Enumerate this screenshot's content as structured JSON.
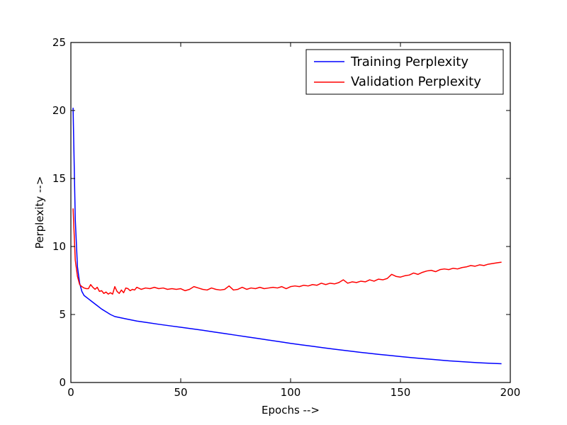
{
  "chart_data": {
    "type": "line",
    "title": "",
    "xlabel": "Epochs -->",
    "ylabel": "Perplexity -->",
    "xlim": [
      0,
      200
    ],
    "ylim": [
      0,
      25
    ],
    "xticks": [
      0,
      50,
      100,
      150,
      200
    ],
    "yticks": [
      0,
      5,
      10,
      15,
      20,
      25
    ],
    "grid": false,
    "legend_position": "top-right",
    "series": [
      {
        "name": "Training Perplexity",
        "color": "#0000ff",
        "points": [
          [
            1,
            20.2
          ],
          [
            2,
            12.0
          ],
          [
            3,
            8.5
          ],
          [
            4,
            7.3
          ],
          [
            5,
            6.7
          ],
          [
            6,
            6.4
          ],
          [
            8,
            6.15
          ],
          [
            10,
            5.9
          ],
          [
            12,
            5.65
          ],
          [
            14,
            5.4
          ],
          [
            16,
            5.2
          ],
          [
            18,
            5.0
          ],
          [
            20,
            4.85
          ],
          [
            25,
            4.68
          ],
          [
            30,
            4.52
          ],
          [
            35,
            4.4
          ],
          [
            40,
            4.28
          ],
          [
            45,
            4.17
          ],
          [
            50,
            4.06
          ],
          [
            55,
            3.95
          ],
          [
            60,
            3.84
          ],
          [
            65,
            3.72
          ],
          [
            70,
            3.6
          ],
          [
            75,
            3.48
          ],
          [
            80,
            3.36
          ],
          [
            85,
            3.24
          ],
          [
            90,
            3.12
          ],
          [
            95,
            3.0
          ],
          [
            100,
            2.88
          ],
          [
            105,
            2.77
          ],
          [
            110,
            2.66
          ],
          [
            115,
            2.55
          ],
          [
            120,
            2.45
          ],
          [
            125,
            2.35
          ],
          [
            130,
            2.25
          ],
          [
            135,
            2.16
          ],
          [
            140,
            2.07
          ],
          [
            145,
            1.99
          ],
          [
            150,
            1.91
          ],
          [
            155,
            1.83
          ],
          [
            160,
            1.76
          ],
          [
            165,
            1.69
          ],
          [
            170,
            1.62
          ],
          [
            175,
            1.56
          ],
          [
            180,
            1.51
          ],
          [
            185,
            1.46
          ],
          [
            190,
            1.42
          ],
          [
            196,
            1.38
          ]
        ]
      },
      {
        "name": "Validation Perplexity",
        "color": "#ff0000",
        "points": [
          [
            1,
            12.8
          ],
          [
            2,
            9.0
          ],
          [
            3,
            7.8
          ],
          [
            4,
            7.2
          ],
          [
            5,
            7.05
          ],
          [
            6,
            6.95
          ],
          [
            7,
            6.9
          ],
          [
            8,
            6.9
          ],
          [
            9,
            7.2
          ],
          [
            10,
            7.0
          ],
          [
            11,
            6.85
          ],
          [
            12,
            7.0
          ],
          [
            13,
            6.7
          ],
          [
            14,
            6.75
          ],
          [
            15,
            6.55
          ],
          [
            16,
            6.65
          ],
          [
            17,
            6.5
          ],
          [
            18,
            6.6
          ],
          [
            19,
            6.5
          ],
          [
            20,
            7.05
          ],
          [
            21,
            6.7
          ],
          [
            22,
            6.55
          ],
          [
            23,
            6.8
          ],
          [
            24,
            6.6
          ],
          [
            25,
            6.95
          ],
          [
            26,
            6.9
          ],
          [
            27,
            6.75
          ],
          [
            28,
            6.85
          ],
          [
            29,
            6.8
          ],
          [
            30,
            7.0
          ],
          [
            32,
            6.85
          ],
          [
            34,
            6.95
          ],
          [
            36,
            6.9
          ],
          [
            38,
            7.0
          ],
          [
            40,
            6.9
          ],
          [
            42,
            6.95
          ],
          [
            44,
            6.85
          ],
          [
            46,
            6.9
          ],
          [
            48,
            6.85
          ],
          [
            50,
            6.9
          ],
          [
            52,
            6.75
          ],
          [
            54,
            6.85
          ],
          [
            56,
            7.05
          ],
          [
            58,
            6.95
          ],
          [
            60,
            6.85
          ],
          [
            62,
            6.8
          ],
          [
            64,
            6.95
          ],
          [
            66,
            6.85
          ],
          [
            68,
            6.8
          ],
          [
            70,
            6.85
          ],
          [
            72,
            7.1
          ],
          [
            74,
            6.8
          ],
          [
            76,
            6.85
          ],
          [
            78,
            7.0
          ],
          [
            80,
            6.85
          ],
          [
            82,
            6.95
          ],
          [
            84,
            6.9
          ],
          [
            86,
            7.0
          ],
          [
            88,
            6.9
          ],
          [
            90,
            6.95
          ],
          [
            92,
            7.0
          ],
          [
            94,
            6.95
          ],
          [
            96,
            7.05
          ],
          [
            98,
            6.9
          ],
          [
            100,
            7.05
          ],
          [
            102,
            7.1
          ],
          [
            104,
            7.05
          ],
          [
            106,
            7.15
          ],
          [
            108,
            7.1
          ],
          [
            110,
            7.2
          ],
          [
            112,
            7.15
          ],
          [
            114,
            7.3
          ],
          [
            116,
            7.2
          ],
          [
            118,
            7.3
          ],
          [
            120,
            7.25
          ],
          [
            122,
            7.35
          ],
          [
            124,
            7.55
          ],
          [
            126,
            7.3
          ],
          [
            128,
            7.4
          ],
          [
            130,
            7.35
          ],
          [
            132,
            7.45
          ],
          [
            134,
            7.4
          ],
          [
            136,
            7.55
          ],
          [
            138,
            7.45
          ],
          [
            140,
            7.6
          ],
          [
            142,
            7.55
          ],
          [
            144,
            7.65
          ],
          [
            146,
            7.95
          ],
          [
            148,
            7.8
          ],
          [
            150,
            7.75
          ],
          [
            152,
            7.85
          ],
          [
            154,
            7.9
          ],
          [
            156,
            8.05
          ],
          [
            158,
            7.95
          ],
          [
            160,
            8.1
          ],
          [
            162,
            8.2
          ],
          [
            164,
            8.25
          ],
          [
            166,
            8.15
          ],
          [
            168,
            8.3
          ],
          [
            170,
            8.35
          ],
          [
            172,
            8.3
          ],
          [
            174,
            8.4
          ],
          [
            176,
            8.35
          ],
          [
            178,
            8.45
          ],
          [
            180,
            8.5
          ],
          [
            182,
            8.6
          ],
          [
            184,
            8.55
          ],
          [
            186,
            8.65
          ],
          [
            188,
            8.6
          ],
          [
            190,
            8.7
          ],
          [
            192,
            8.75
          ],
          [
            194,
            8.8
          ],
          [
            196,
            8.85
          ]
        ]
      }
    ]
  }
}
